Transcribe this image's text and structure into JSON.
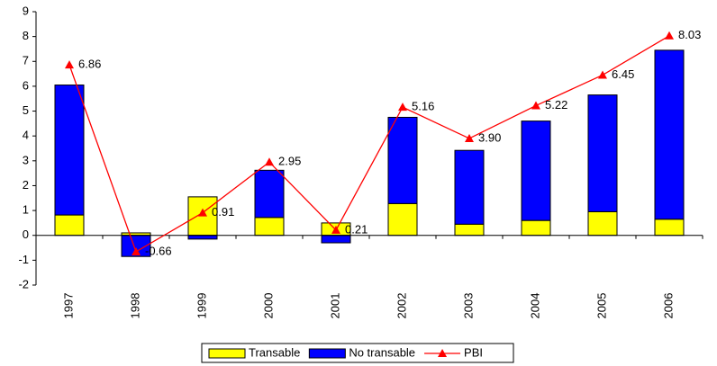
{
  "chart_data": {
    "type": "bar",
    "stacked": true,
    "categories": [
      "1997",
      "1998",
      "1999",
      "2000",
      "2001",
      "2002",
      "2003",
      "2004",
      "2005",
      "2006"
    ],
    "series": [
      {
        "name": "Transable",
        "type": "bar",
        "color": "#ffff00",
        "values": [
          0.82,
          0.1,
          1.55,
          0.72,
          0.5,
          1.28,
          0.45,
          0.6,
          0.95,
          0.65
        ]
      },
      {
        "name": "No transable",
        "type": "bar",
        "color": "#0000ff",
        "values": [
          5.23,
          -0.85,
          -0.15,
          1.9,
          -0.3,
          3.47,
          2.97,
          4.0,
          4.7,
          6.8
        ]
      },
      {
        "name": "PBI",
        "type": "line",
        "color": "#ff0000",
        "values": [
          6.86,
          -0.66,
          0.91,
          2.95,
          0.21,
          5.16,
          3.9,
          5.22,
          6.45,
          8.03
        ],
        "value_labels": [
          "6.86",
          "-0.66",
          "0.91",
          "2.95",
          "0.21",
          "5.16",
          "3.90",
          "5.22",
          "6.45",
          "8.03"
        ]
      }
    ],
    "ylim": [
      -2,
      9
    ],
    "yticks": [
      -2,
      -1,
      0,
      1,
      2,
      3,
      4,
      5,
      6,
      7,
      8,
      9
    ],
    "grid": false,
    "legend": "bottom"
  }
}
